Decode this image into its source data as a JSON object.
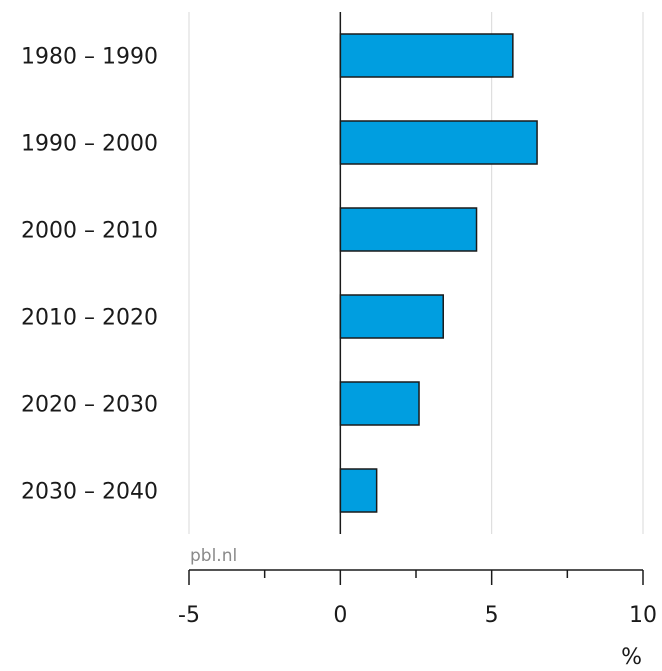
{
  "chart_data": {
    "type": "bar",
    "orientation": "horizontal",
    "categories": [
      "1980 – 1990",
      "1990 – 2000",
      "2000 – 2010",
      "2010 – 2020",
      "2020 – 2030",
      "2030 – 2040"
    ],
    "values": [
      5.7,
      6.5,
      4.5,
      3.4,
      2.6,
      1.2
    ],
    "title": "",
    "xlabel": "%",
    "ylabel": "",
    "xlim": [
      -5,
      10
    ],
    "xticks": [
      -5,
      0,
      5,
      10
    ],
    "xtick_labels": [
      "-5",
      "0",
      "5",
      "10"
    ],
    "grid": true,
    "bar_color": "#009ee0",
    "bar_stroke": "#1a1a1a",
    "gridline_color": "#d9d9d9",
    "source": "pbl.nl"
  }
}
